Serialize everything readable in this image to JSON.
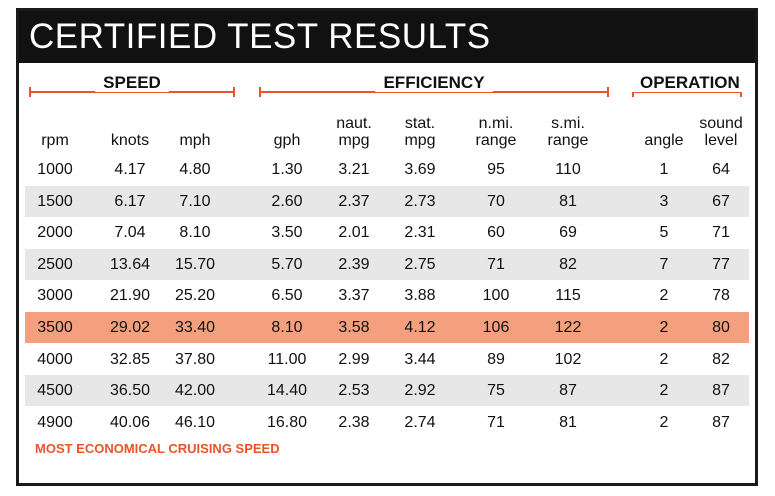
{
  "title": "CERTIFIED TEST RESULTS",
  "groups": {
    "speed": "SPEED",
    "efficiency": "EFFICIENCY",
    "operation": "OPERATION"
  },
  "columns": [
    [
      "rpm"
    ],
    [
      "knots"
    ],
    [
      "mph"
    ],
    [
      "gph"
    ],
    [
      "naut.",
      "mpg"
    ],
    [
      "stat.",
      "mpg"
    ],
    [
      "n.mi.",
      "range"
    ],
    [
      "s.mi.",
      "range"
    ],
    [
      "angle"
    ],
    [
      "sound",
      "level"
    ]
  ],
  "rows": [
    [
      "1000",
      "4.17",
      "4.80",
      "1.30",
      "3.21",
      "3.69",
      "95",
      "110",
      "1",
      "64"
    ],
    [
      "1500",
      "6.17",
      "7.10",
      "2.60",
      "2.37",
      "2.73",
      "70",
      "81",
      "3",
      "67"
    ],
    [
      "2000",
      "7.04",
      "8.10",
      "3.50",
      "2.01",
      "2.31",
      "60",
      "69",
      "5",
      "71"
    ],
    [
      "2500",
      "13.64",
      "15.70",
      "5.70",
      "2.39",
      "2.75",
      "71",
      "82",
      "7",
      "77"
    ],
    [
      "3000",
      "21.90",
      "25.20",
      "6.50",
      "3.37",
      "3.88",
      "100",
      "115",
      "2",
      "78"
    ],
    [
      "3500",
      "29.02",
      "33.40",
      "8.10",
      "3.58",
      "4.12",
      "106",
      "122",
      "2",
      "80"
    ],
    [
      "4000",
      "32.85",
      "37.80",
      "11.00",
      "2.99",
      "3.44",
      "89",
      "102",
      "2",
      "82"
    ],
    [
      "4500",
      "36.50",
      "42.00",
      "14.40",
      "2.53",
      "2.92",
      "75",
      "87",
      "2",
      "87"
    ],
    [
      "4900",
      "40.06",
      "46.10",
      "16.80",
      "2.38",
      "2.74",
      "71",
      "81",
      "2",
      "87"
    ]
  ],
  "highlight_row": 5,
  "footnote": "MOST ECONOMICAL CRUISING SPEED",
  "colors": {
    "accent": "#e8552b",
    "highlight": "#f4a07f",
    "stripe": "#e7e7e7",
    "title_bar": "#111111"
  }
}
